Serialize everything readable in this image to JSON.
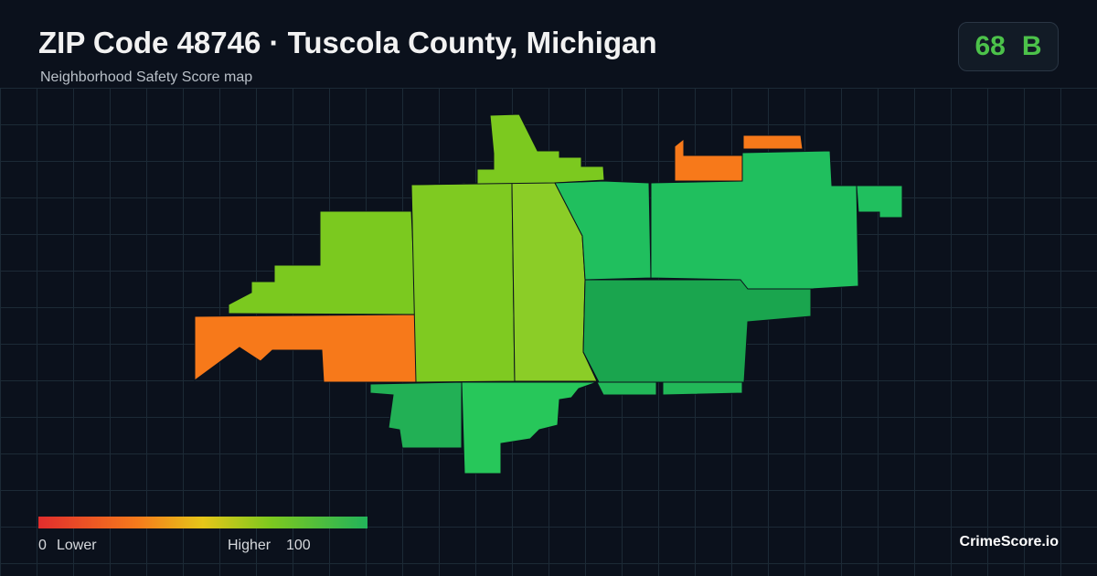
{
  "header": {
    "title": "ZIP Code 48746 · Tuscola County, Michigan",
    "subtitle": "Neighborhood Safety Score map"
  },
  "score": {
    "value": 68,
    "grade": "B"
  },
  "legend": {
    "min": 0,
    "min_label": "Lower",
    "max_label": "Higher",
    "max": 100
  },
  "brand": "CrimeScore.io"
}
